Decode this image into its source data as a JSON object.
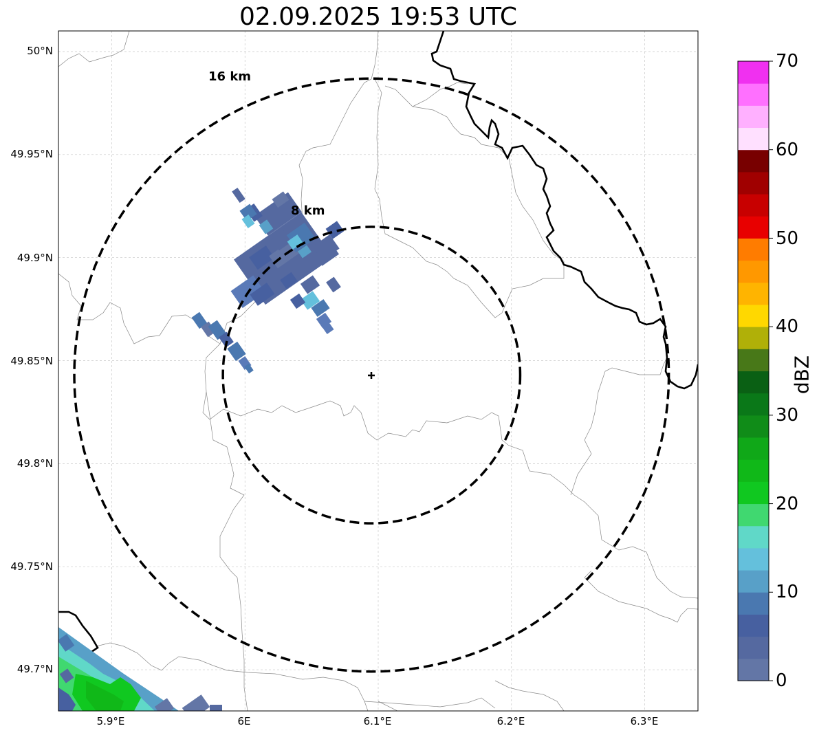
{
  "title": "02.09.2025 19:53 UTC",
  "map": {
    "lon_range": [
      5.86,
      6.34
    ],
    "lat_range": [
      49.68,
      50.01
    ],
    "y_ticks": [
      {
        "value": 50.0,
        "label": "50°N"
      },
      {
        "value": 49.95,
        "label": "49.95°N"
      },
      {
        "value": 49.9,
        "label": "49.9°N"
      },
      {
        "value": 49.85,
        "label": "49.85°N"
      },
      {
        "value": 49.8,
        "label": "49.8°N"
      },
      {
        "value": 49.75,
        "label": "49.75°N"
      },
      {
        "value": 49.7,
        "label": "49.7°N"
      }
    ],
    "x_ticks": [
      {
        "value": 5.9,
        "label": "5.9°E"
      },
      {
        "value": 6.0,
        "label": "6E"
      },
      {
        "value": 6.1,
        "label": "6.1°E"
      },
      {
        "value": 6.2,
        "label": "6.2°E"
      },
      {
        "value": 6.3,
        "label": "6.3°E"
      }
    ],
    "radar_center": {
      "lon": 6.095,
      "lat": 49.843
    },
    "range_rings": [
      {
        "label": "8 km",
        "radius_km": 8
      },
      {
        "label": "16 km",
        "radius_km": 16
      }
    ],
    "gridlines": true
  },
  "colorbar": {
    "label": "dBZ",
    "min": 0,
    "max": 70,
    "ticks": [
      {
        "value": 0,
        "label": "0"
      },
      {
        "value": 10,
        "label": "10"
      },
      {
        "value": 20,
        "label": "20"
      },
      {
        "value": 30,
        "label": "30"
      },
      {
        "value": 40,
        "label": "40"
      },
      {
        "value": 50,
        "label": "50"
      },
      {
        "value": 60,
        "label": "60"
      },
      {
        "value": 70,
        "label": "70"
      }
    ],
    "colors": [
      "#6376a6",
      "#5569a0",
      "#4760a0",
      "#4a78b0",
      "#58a0c8",
      "#64c0dc",
      "#60d8c8",
      "#40d870",
      "#10c820",
      "#10b818",
      "#10a818",
      "#108c18",
      "#0a7818",
      "#0a6014",
      "#487818",
      "#b0b008",
      "#ffd800",
      "#ffb400",
      "#ff9800",
      "#ff7c00",
      "#e80000",
      "#c80000",
      "#a00000",
      "#780000",
      "#ffe0ff",
      "#ffb0ff",
      "#ff70ff",
      "#f030f0"
    ]
  }
}
